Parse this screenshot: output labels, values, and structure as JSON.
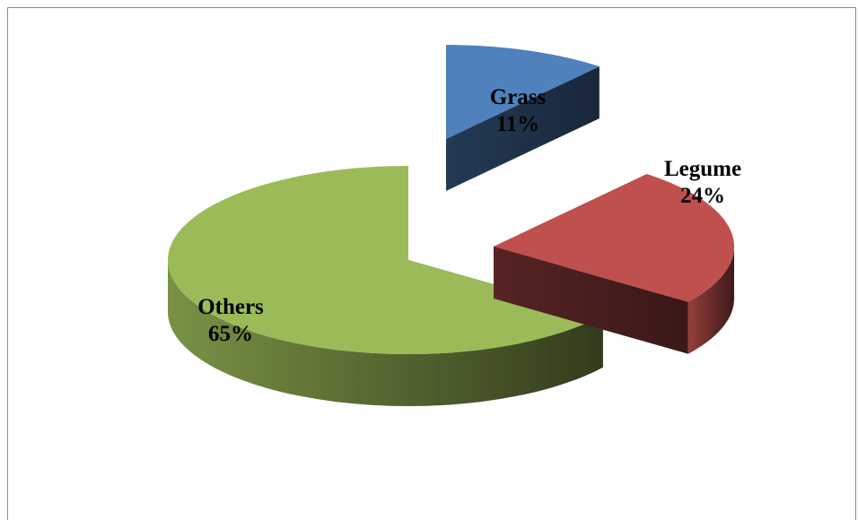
{
  "chart_data": {
    "type": "pie",
    "style": "3d-exploded",
    "title": "",
    "legend": "none",
    "categories": [
      "Grass",
      "Legume",
      "Others"
    ],
    "values": [
      11,
      24,
      65
    ],
    "labels": [
      {
        "name": "Grass",
        "value": "11%"
      },
      {
        "name": "Legume",
        "value": "24%"
      },
      {
        "name": "Others",
        "value": "65%"
      }
    ],
    "colors": [
      "#4f81bd",
      "#c0504d",
      "#9bbb59"
    ]
  }
}
